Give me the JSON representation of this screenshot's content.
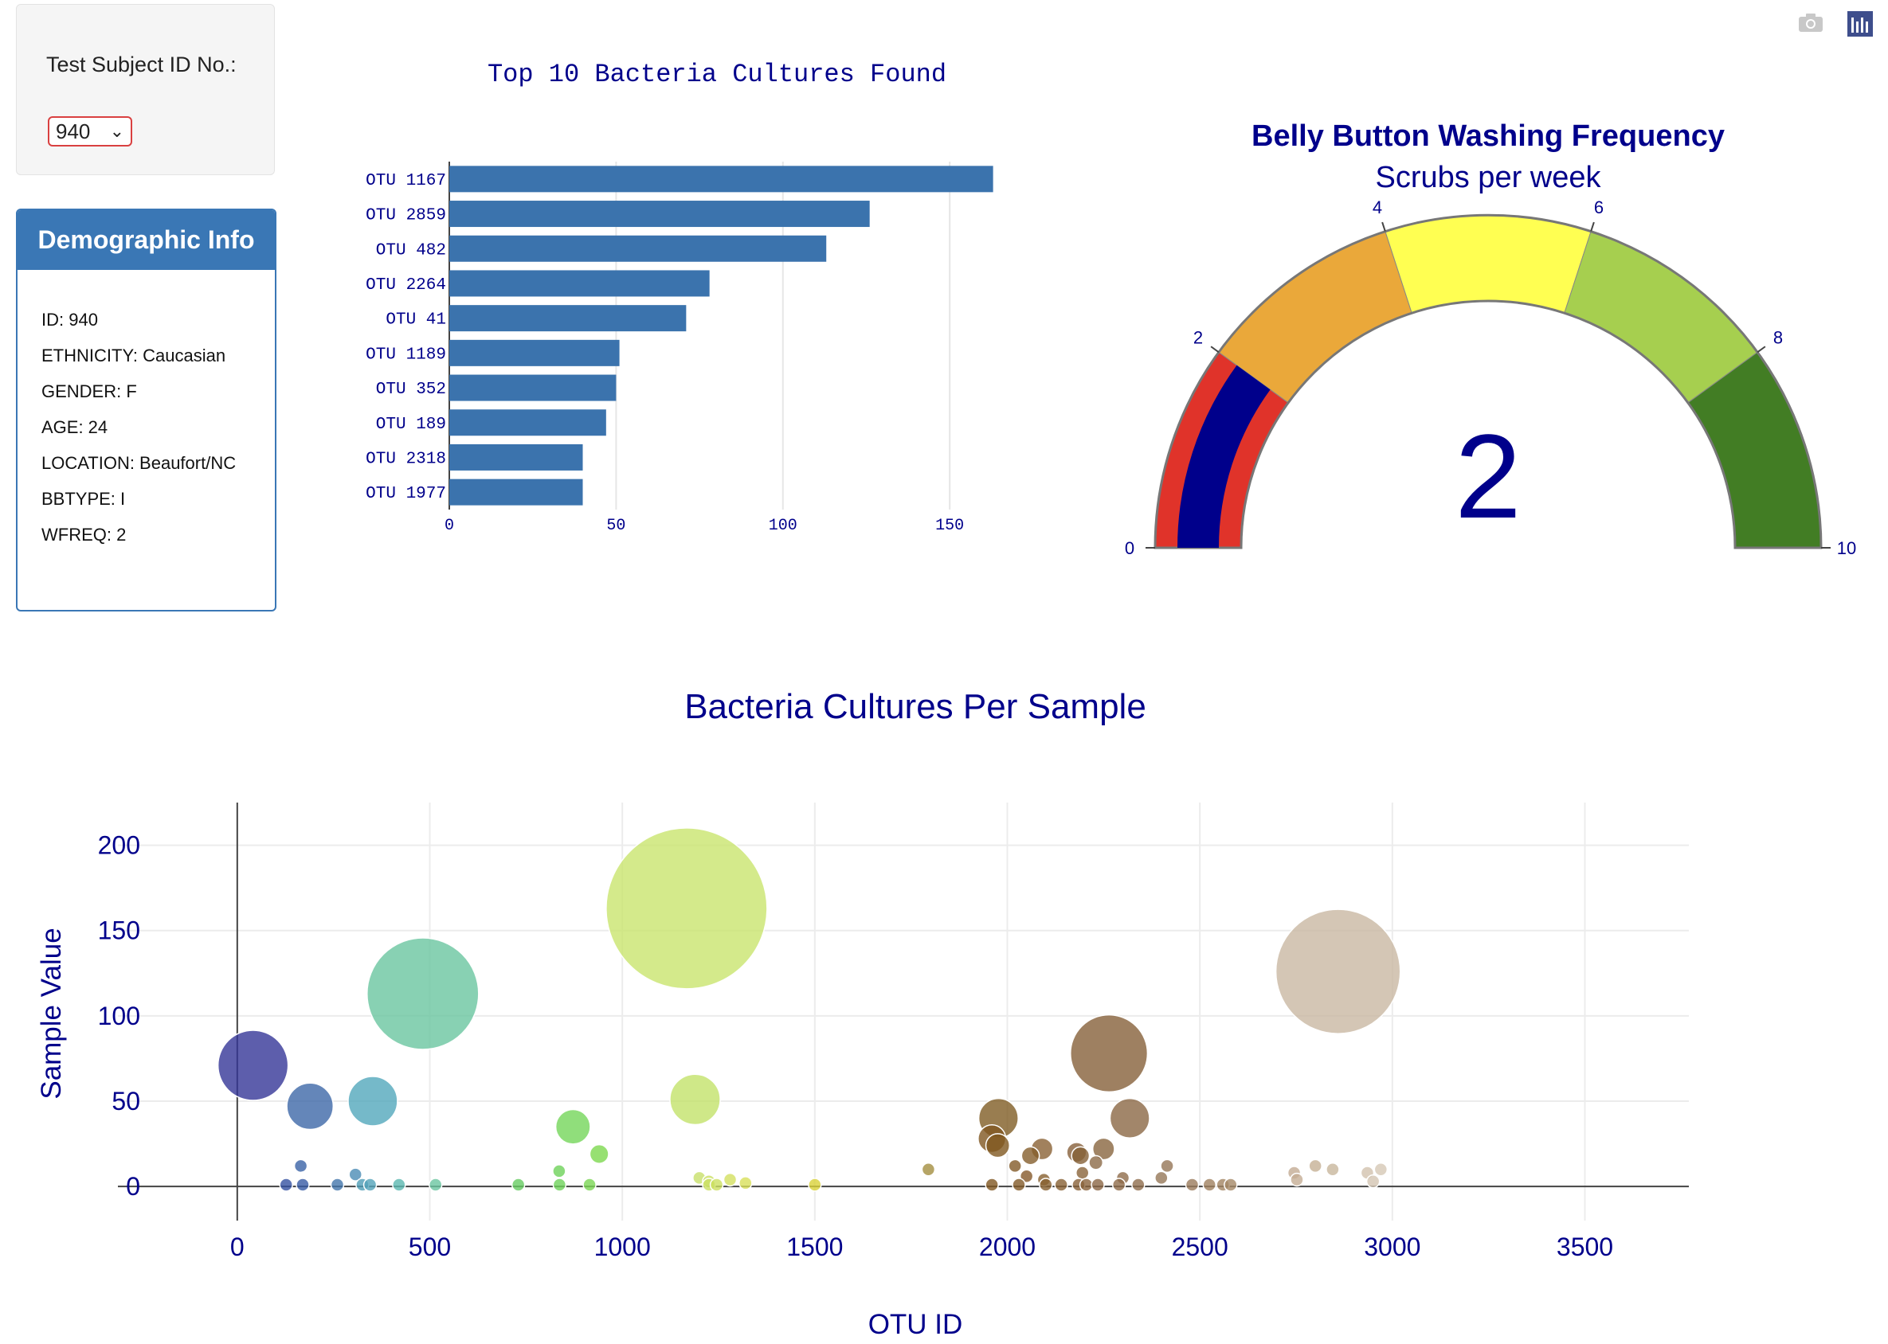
{
  "selector": {
    "label": "Test Subject ID No.:",
    "selected": "940"
  },
  "demographics": {
    "title": "Demographic Info",
    "items": [
      "ID: 940",
      "ETHNICITY: Caucasian",
      "GENDER: F",
      "AGE: 24",
      "LOCATION: Beaufort/NC",
      "BBTYPE: I",
      "WFREQ: 2"
    ]
  },
  "toolbar": {
    "icons": [
      "camera-icon",
      "plotly-logo-icon"
    ]
  },
  "colors": {
    "title": "#00008b",
    "bar": "#3b73ad",
    "panel_header": "#3a77b5"
  },
  "chart_data": [
    {
      "type": "bar",
      "orientation": "horizontal",
      "title": "Top 10 Bacteria Cultures Found",
      "categories": [
        "OTU 1167",
        "OTU 2859",
        "OTU 482",
        "OTU 2264",
        "OTU 41",
        "OTU 1189",
        "OTU 352",
        "OTU 189",
        "OTU 2318",
        "OTU 1977"
      ],
      "values": [
        163,
        126,
        113,
        78,
        71,
        51,
        50,
        47,
        40,
        40
      ],
      "xlim": [
        0,
        165
      ],
      "xticks": [
        0,
        50,
        100,
        150
      ],
      "grid": true
    },
    {
      "type": "gauge",
      "title": "Belly Button Washing Frequency",
      "subtitle": "Scrubs per week",
      "value": 2,
      "range": [
        0,
        10
      ],
      "ticks": [
        0,
        2,
        4,
        6,
        8,
        10
      ],
      "steps": [
        {
          "range": [
            0,
            2
          ],
          "color": "#e0332a"
        },
        {
          "range": [
            2,
            4
          ],
          "color": "#eaa83a"
        },
        {
          "range": [
            4,
            6
          ],
          "color": "#ffff52"
        },
        {
          "range": [
            6,
            8
          ],
          "color": "#a6cf4f"
        },
        {
          "range": [
            8,
            10
          ],
          "color": "#427d24"
        }
      ],
      "bar_color": "#00008b"
    },
    {
      "type": "scatter",
      "mode": "bubble",
      "title": "Bacteria Cultures Per Sample",
      "xlabel": "OTU ID",
      "ylabel": "Sample Value",
      "xlim": [
        -310,
        3770
      ],
      "ylim": [
        -20,
        225
      ],
      "xticks": [
        0,
        500,
        1000,
        1500,
        2000,
        2500,
        3000,
        3500
      ],
      "yticks": [
        0,
        50,
        100,
        150,
        200
      ],
      "grid": true,
      "points": [
        {
          "x": 41,
          "y": 71,
          "color": "#343697"
        },
        {
          "x": 189,
          "y": 47,
          "color": "#3d68a8"
        },
        {
          "x": 352,
          "y": 50,
          "color": "#52a8bb"
        },
        {
          "x": 482,
          "y": 113,
          "color": "#6ac6a0"
        },
        {
          "x": 1167,
          "y": 163,
          "color": "#c9e56e"
        },
        {
          "x": 1189,
          "y": 51,
          "color": "#c3e26a"
        },
        {
          "x": 2264,
          "y": 78,
          "color": "#86603a"
        },
        {
          "x": 2318,
          "y": 40,
          "color": "#8b6845"
        },
        {
          "x": 1977,
          "y": 40,
          "color": "#805c24"
        },
        {
          "x": 2859,
          "y": 126,
          "color": "#c9b8a2"
        },
        {
          "x": 872,
          "y": 35,
          "color": "#74d65a"
        },
        {
          "x": 940,
          "y": 19,
          "color": "#7dd84f"
        },
        {
          "x": 165,
          "y": 12,
          "color": "#3a63a6"
        },
        {
          "x": 307,
          "y": 7,
          "color": "#4b8cb5"
        },
        {
          "x": 836,
          "y": 9,
          "color": "#6ed25a"
        },
        {
          "x": 1795,
          "y": 10,
          "color": "#a48f40"
        },
        {
          "x": 1960,
          "y": 28,
          "color": "#7f5620"
        },
        {
          "x": 1975,
          "y": 24,
          "color": "#80581f"
        },
        {
          "x": 2060,
          "y": 18,
          "color": "#855e2c"
        },
        {
          "x": 2090,
          "y": 22,
          "color": "#8a6234"
        },
        {
          "x": 2180,
          "y": 20,
          "color": "#87603b"
        },
        {
          "x": 2190,
          "y": 18,
          "color": "#856037"
        },
        {
          "x": 2250,
          "y": 22,
          "color": "#88653f"
        },
        {
          "x": 2230,
          "y": 14,
          "color": "#8c6a47"
        },
        {
          "x": 2020,
          "y": 12,
          "color": "#825a28"
        },
        {
          "x": 2050,
          "y": 6,
          "color": "#84592a"
        },
        {
          "x": 2095,
          "y": 4,
          "color": "#876030"
        },
        {
          "x": 2195,
          "y": 8,
          "color": "#8a643a"
        },
        {
          "x": 2300,
          "y": 5,
          "color": "#8e6c4a"
        },
        {
          "x": 2415,
          "y": 12,
          "color": "#957656"
        },
        {
          "x": 2400,
          "y": 5,
          "color": "#957758"
        },
        {
          "x": 2745,
          "y": 8,
          "color": "#c3ab93"
        },
        {
          "x": 2800,
          "y": 12,
          "color": "#c5b095"
        },
        {
          "x": 2845,
          "y": 10,
          "color": "#c8b69c"
        },
        {
          "x": 2935,
          "y": 8,
          "color": "#d2c2ae"
        },
        {
          "x": 2970,
          "y": 10,
          "color": "#d6c8b5"
        },
        {
          "x": 2752,
          "y": 4,
          "color": "#c4ad94"
        },
        {
          "x": 2950,
          "y": 3,
          "color": "#d3c4b1"
        },
        {
          "x": 1200,
          "y": 5,
          "color": "#c8e06a"
        },
        {
          "x": 1225,
          "y": 3,
          "color": "#cae063"
        },
        {
          "x": 1280,
          "y": 4,
          "color": "#d3e060"
        },
        {
          "x": 1320,
          "y": 2,
          "color": "#d8e05a"
        },
        {
          "x": 1500,
          "y": 1,
          "color": "#dad23a"
        },
        {
          "x": 127,
          "y": 1,
          "color": "#3551a1"
        },
        {
          "x": 170,
          "y": 1,
          "color": "#375aa4"
        },
        {
          "x": 260,
          "y": 1,
          "color": "#4276ab"
        },
        {
          "x": 325,
          "y": 1,
          "color": "#4f9db6"
        },
        {
          "x": 345,
          "y": 1,
          "color": "#52a3b9"
        },
        {
          "x": 420,
          "y": 1,
          "color": "#5bb8b0"
        },
        {
          "x": 515,
          "y": 1,
          "color": "#6ac6a0"
        },
        {
          "x": 730,
          "y": 1,
          "color": "#66cc62"
        },
        {
          "x": 837,
          "y": 1,
          "color": "#6ed25a"
        },
        {
          "x": 915,
          "y": 1,
          "color": "#7ad654"
        },
        {
          "x": 1225,
          "y": 1,
          "color": "#cae063"
        },
        {
          "x": 1245,
          "y": 1,
          "color": "#cce060"
        },
        {
          "x": 1960,
          "y": 1,
          "color": "#7f5620"
        },
        {
          "x": 2030,
          "y": 1,
          "color": "#825a28"
        },
        {
          "x": 2100,
          "y": 1,
          "color": "#876030"
        },
        {
          "x": 2140,
          "y": 1,
          "color": "#876033"
        },
        {
          "x": 2185,
          "y": 1,
          "color": "#88623a"
        },
        {
          "x": 2205,
          "y": 1,
          "color": "#89633b"
        },
        {
          "x": 2235,
          "y": 1,
          "color": "#8b6645"
        },
        {
          "x": 2290,
          "y": 1,
          "color": "#8e6c4a"
        },
        {
          "x": 2340,
          "y": 1,
          "color": "#8f6d4c"
        },
        {
          "x": 2480,
          "y": 1,
          "color": "#9a7b5b"
        },
        {
          "x": 2525,
          "y": 1,
          "color": "#a0815f"
        },
        {
          "x": 2560,
          "y": 1,
          "color": "#a38563"
        },
        {
          "x": 2580,
          "y": 1,
          "color": "#a58866"
        }
      ]
    }
  ]
}
